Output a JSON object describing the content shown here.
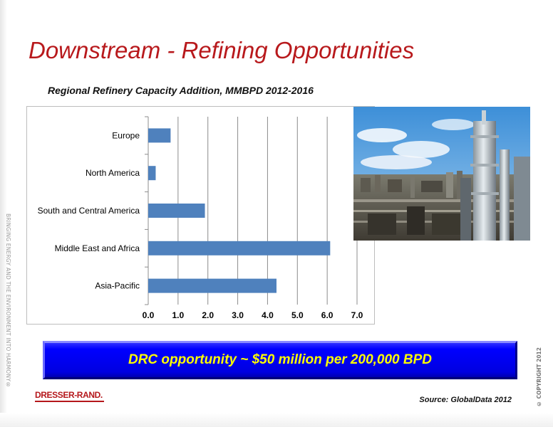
{
  "slide": {
    "title": "Downstream - Refining Opportunities",
    "side_text": "BRINGING ENERGY AND THE ENVIRONMENT INTO HARMONY®",
    "copyright": "© COPYRIGHT 2012",
    "banner_text": "DRC opportunity ~ $50 million per  200,000 BPD",
    "logo_text": "DRESSER-RAND.",
    "source": "Source: GlobalData 2012",
    "colors": {
      "title": "#b8191c",
      "bar": "#4f81bd",
      "banner": "#0000ff",
      "banner_text": "#ffff00"
    },
    "photo_icon": "refinery-photo"
  },
  "chart_data": {
    "type": "bar",
    "orientation": "horizontal",
    "title": "Regional Refinery Capacity Addition, MMBPD 2012-2016",
    "categories": [
      "Europe",
      "North America",
      "South and Central America",
      "Middle East and Africa",
      "Asia-Pacific"
    ],
    "values": [
      0.75,
      0.25,
      1.9,
      6.1,
      4.3
    ],
    "xlim": [
      0,
      7
    ],
    "xticks": [
      "0.0",
      "1.0",
      "2.0",
      "3.0",
      "4.0",
      "5.0",
      "6.0",
      "7.0"
    ],
    "grid": true,
    "legend": false
  }
}
